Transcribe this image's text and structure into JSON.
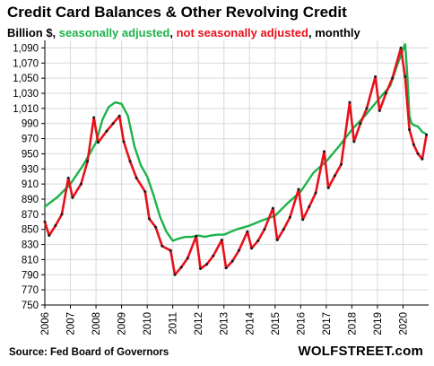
{
  "title": "Credit Card Balances & Other Revolving Credit",
  "subtitle": [
    {
      "text": "Billion $, ",
      "color": "#000000"
    },
    {
      "text": "seasonally adjusted",
      "color": "#1cb34a"
    },
    {
      "text": ", ",
      "color": "#000000"
    },
    {
      "text": "not seasonally adjusted",
      "color": "#e8101b"
    },
    {
      "text": ", monthly",
      "color": "#000000"
    }
  ],
  "source": "Source: Fed Board of Governors",
  "brand": "WOLFSTREET.com",
  "colors": {
    "sa": "#1cb34a",
    "nsa": "#e8101b",
    "dot": "#1a1a1a",
    "grid": "#d9d9d9"
  },
  "chart_data": {
    "type": "line",
    "title": "Credit Card Balances & Other Revolving Credit",
    "xlabel": "",
    "ylabel": "",
    "x_start": "2006-01",
    "x_end": "2020-12",
    "xlim": [
      2006,
      2021
    ],
    "ylim": [
      750,
      1100
    ],
    "grid": true,
    "x_ticks": [
      "2006",
      "2007",
      "2008",
      "2009",
      "2010",
      "2011",
      "2012",
      "2013",
      "2014",
      "2015",
      "2016",
      "2017",
      "2018",
      "2019",
      "2020"
    ],
    "y_ticks": [
      750,
      770,
      790,
      810,
      830,
      850,
      870,
      890,
      910,
      930,
      950,
      970,
      990,
      1010,
      1030,
      1050,
      1070,
      1090
    ],
    "y_tick_labels": [
      "750",
      "770",
      "790",
      "810",
      "830",
      "850",
      "870",
      "890",
      "910",
      "930",
      "950",
      "970",
      "990",
      "1,010",
      "1,030",
      "1,050",
      "1,070",
      "1,090"
    ],
    "series": [
      {
        "name": "seasonally adjusted",
        "color": "#1cb34a",
        "x": [
          "2006-01",
          "2006-07",
          "2007-01",
          "2007-07",
          "2008-01",
          "2008-04",
          "2008-07",
          "2008-10",
          "2009-01",
          "2009-04",
          "2009-07",
          "2009-10",
          "2010-01",
          "2010-04",
          "2010-07",
          "2010-10",
          "2011-01",
          "2011-04",
          "2011-07",
          "2011-10",
          "2012-01",
          "2012-04",
          "2012-07",
          "2012-10",
          "2013-01",
          "2013-07",
          "2014-01",
          "2014-07",
          "2015-01",
          "2015-07",
          "2016-01",
          "2016-07",
          "2017-01",
          "2017-07",
          "2018-01",
          "2018-07",
          "2019-01",
          "2019-07",
          "2019-10",
          "2020-01",
          "2020-02",
          "2020-03",
          "2020-04",
          "2020-05",
          "2020-06",
          "2020-08",
          "2020-10",
          "2020-12"
        ],
        "y": [
          880,
          893,
          910,
          935,
          965,
          995,
          1012,
          1018,
          1016,
          1000,
          960,
          935,
          920,
          895,
          867,
          847,
          835,
          838,
          840,
          840,
          842,
          840,
          842,
          843,
          843,
          850,
          855,
          862,
          868,
          885,
          900,
          925,
          940,
          960,
          982,
          1000,
          1020,
          1040,
          1065,
          1088,
          1095,
          1055,
          1000,
          990,
          988,
          986,
          979,
          976
        ]
      },
      {
        "name": "not seasonally adjusted",
        "color": "#e8101b",
        "x": [
          "2006-01",
          "2006-03",
          "2006-06",
          "2006-09",
          "2006-12",
          "2007-02",
          "2007-06",
          "2007-09",
          "2007-12",
          "2008-02",
          "2008-06",
          "2008-09",
          "2008-12",
          "2009-02",
          "2009-05",
          "2009-08",
          "2009-12",
          "2010-02",
          "2010-05",
          "2010-08",
          "2010-12",
          "2011-02",
          "2011-05",
          "2011-08",
          "2011-12",
          "2012-02",
          "2012-05",
          "2012-08",
          "2012-12",
          "2013-02",
          "2013-05",
          "2013-08",
          "2013-12",
          "2014-02",
          "2014-05",
          "2014-08",
          "2014-12",
          "2015-02",
          "2015-05",
          "2015-08",
          "2015-12",
          "2016-02",
          "2016-05",
          "2016-08",
          "2016-12",
          "2017-02",
          "2017-05",
          "2017-08",
          "2017-12",
          "2018-02",
          "2018-05",
          "2018-08",
          "2018-12",
          "2019-02",
          "2019-05",
          "2019-08",
          "2019-12",
          "2020-02",
          "2020-04",
          "2020-06",
          "2020-08",
          "2020-10",
          "2020-12"
        ],
        "y": [
          860,
          842,
          855,
          870,
          918,
          892,
          910,
          940,
          998,
          965,
          980,
          990,
          1000,
          966,
          940,
          918,
          900,
          864,
          853,
          828,
          822,
          790,
          800,
          812,
          841,
          798,
          804,
          815,
          836,
          799,
          808,
          822,
          847,
          825,
          835,
          850,
          878,
          836,
          850,
          866,
          903,
          863,
          880,
          898,
          953,
          905,
          921,
          936,
          1018,
          966,
          990,
          1010,
          1052,
          1007,
          1030,
          1050,
          1090,
          1052,
          982,
          962,
          950,
          943,
          975
        ]
      }
    ]
  }
}
